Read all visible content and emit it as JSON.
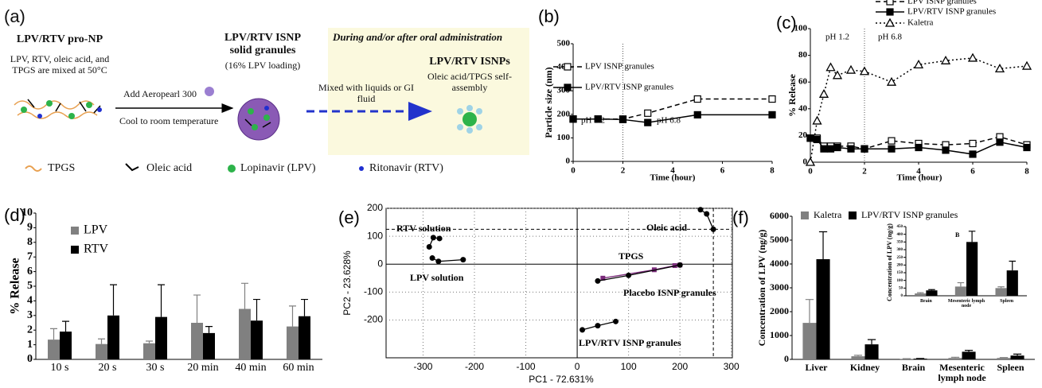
{
  "schematic": {
    "panel": "(a)",
    "step1_title": "LPV/RTV pro-NP",
    "step1_text": "LPV, RTV, oleic acid, and TPGS are mixed at 50°C",
    "arrow1_top": "Add Aeropearl 300",
    "arrow1_bottom": "Cool to room temperature",
    "step2_title": "LPV/RTV ISNP solid granules",
    "step2_note": "(16% LPV loading)",
    "box_title": "During and/or after oral administration",
    "arrow2_text": "Mixed with liquids or GI fluid",
    "step3_title": "LPV/RTV ISNPs",
    "step3_text": "Oleic acid/TPGS self-assembly",
    "legend": [
      "TPGS",
      "Oleic acid",
      "Lopinavir (LPV)",
      "Ritonavir (RTV)"
    ]
  },
  "chart_data": [
    {
      "panel": "(b)",
      "type": "line",
      "xlabel": "Time (hour)",
      "ylabel": "Particle size (nm)",
      "x": [
        0,
        1,
        2,
        3,
        5,
        8
      ],
      "xlim": [
        0,
        8
      ],
      "xticks": [
        0,
        2,
        4,
        6,
        8
      ],
      "ylim": [
        0,
        500
      ],
      "yticks": [
        0,
        100,
        200,
        300,
        400,
        500
      ],
      "divider": 2,
      "annotations": [
        "pH 1.2",
        "pH 6.8"
      ],
      "legend": "upper left",
      "series": [
        {
          "name": "LPV ISNP granules",
          "color": "#000000",
          "style": "dashed",
          "marker": "open",
          "values": [
            180,
            180,
            180,
            205,
            265,
            265
          ]
        },
        {
          "name": "LPV/RTV ISNP granules",
          "color": "#000000",
          "style": "solid",
          "marker": "filled",
          "values": [
            180,
            180,
            178,
            165,
            198,
            198
          ]
        }
      ]
    },
    {
      "panel": "(c)",
      "type": "line",
      "xlabel": "Time (hour)",
      "ylabel": "% Release",
      "x": [
        0,
        0.25,
        0.5,
        0.75,
        1,
        1.5,
        2,
        3,
        4,
        5,
        6,
        7,
        8
      ],
      "xlim": [
        0,
        8
      ],
      "xticks": [
        0,
        2,
        4,
        6,
        8
      ],
      "ylim": [
        0,
        100
      ],
      "yticks": [
        0,
        20,
        40,
        60,
        80,
        100
      ],
      "divider": 2,
      "annotations": [
        "pH 1.2",
        "pH 6.8"
      ],
      "legend": "above",
      "series": [
        {
          "name": "LPV ISNP granules",
          "color": "#000000",
          "style": "dashed",
          "marker": "open",
          "values": [
            18,
            18,
            12,
            12,
            12,
            12,
            10,
            16,
            14,
            13,
            14,
            19,
            13
          ]
        },
        {
          "name": "LPV/RTV ISNP granules",
          "color": "#000000",
          "style": "solid",
          "marker": "filled",
          "values": [
            18,
            17,
            10,
            10,
            11,
            10,
            10,
            10,
            11,
            9,
            6,
            15,
            11
          ]
        },
        {
          "name": "Kaletra",
          "color": "#000000",
          "style": "dotted",
          "marker": "triangle",
          "values": [
            0,
            31,
            51,
            71,
            65,
            69,
            68,
            60,
            73,
            76,
            78,
            70,
            72
          ]
        }
      ]
    },
    {
      "panel": "(d)",
      "type": "bar",
      "ylabel": "% Release",
      "categories": [
        "10 s",
        "20 s",
        "30 s",
        "20 min",
        "40 min",
        "60 min"
      ],
      "ylim": [
        0,
        10
      ],
      "yticks": [
        0,
        1,
        2,
        3,
        4,
        5,
        6,
        7,
        8,
        9,
        10
      ],
      "legend": "upper left",
      "series": [
        {
          "name": "LPV",
          "color": "#808080",
          "values": [
            1.35,
            1.05,
            1.1,
            2.5,
            3.45,
            2.25
          ],
          "errors": [
            0.75,
            0.35,
            0.15,
            1.9,
            1.75,
            1.4
          ]
        },
        {
          "name": "RTV",
          "color": "#000000",
          "values": [
            1.9,
            3.0,
            2.9,
            1.8,
            2.65,
            2.95
          ],
          "errors": [
            0.7,
            2.1,
            2.2,
            0.45,
            1.45,
            1.15
          ]
        }
      ]
    },
    {
      "panel": "(e)",
      "type": "scatter",
      "xlabel": "PC1 - 72.631%",
      "ylabel": "PC2 - 23.628%",
      "xlim": [
        -372,
        302
      ],
      "xticks": [
        -300,
        -200,
        -100,
        0,
        100,
        200,
        300
      ],
      "ylim": [
        -335,
        200
      ],
      "yticks": [
        -200,
        -100,
        0,
        100,
        200
      ],
      "grid": true,
      "refline_x": 265,
      "refline_y": 125,
      "series": [
        {
          "name": "RTV solution",
          "color": "#000000",
          "x": [
            -288,
            -280,
            -268
          ],
          "values": [
            62,
            95,
            92
          ]
        },
        {
          "name": "LPV solution",
          "color": "#000000",
          "x": [
            -282,
            -270,
            -222
          ],
          "values": [
            22,
            10,
            16
          ]
        },
        {
          "name": "Oleic acid",
          "color": "#000000",
          "x": [
            240,
            252,
            265
          ],
          "values": [
            195,
            180,
            125
          ]
        },
        {
          "name": "TPGS",
          "color": "#7a2a7a",
          "x": [
            50,
            150,
            190,
            200
          ],
          "values": [
            -50,
            -20,
            -5,
            -3
          ]
        },
        {
          "name": "Placebo ISNP  granules",
          "color": "#000000",
          "x": [
            40,
            100,
            200
          ],
          "values": [
            -60,
            -40,
            -3
          ]
        },
        {
          "name": "LPV/RTV ISNP  granules",
          "color": "#000000",
          "x": [
            10,
            40,
            75
          ],
          "values": [
            -235,
            -220,
            -205
          ]
        }
      ]
    },
    {
      "panel": "(f)",
      "type": "bar",
      "ylabel": "Concentration of LPV (ng/g)",
      "categories": [
        "Liver",
        "Kidney",
        "Brain",
        "Mesenteric lymph node",
        "Spleen"
      ],
      "ylim": [
        0,
        6000
      ],
      "yticks": [
        0,
        1000,
        2000,
        3000,
        4000,
        5000,
        6000
      ],
      "legend": "top",
      "series": [
        {
          "name": "Kaletra",
          "color": "#808080",
          "values": [
            1530,
            130,
            20,
            60,
            60
          ],
          "errors": [
            980,
            40,
            10,
            30,
            15
          ]
        },
        {
          "name": "LPV/RTV ISNP granules",
          "color": "#000000",
          "values": [
            4200,
            630,
            30,
            320,
            160
          ],
          "errors": [
            1150,
            200,
            10,
            60,
            60
          ]
        }
      ]
    },
    {
      "title": "B",
      "type": "bar",
      "ylabel": "Concentration of LPV (ng/g)",
      "categories": [
        "Brain",
        "Mesenteric lymph node",
        "Spleen"
      ],
      "ylim": [
        0,
        450
      ],
      "yticks": [
        0,
        50,
        100,
        150,
        200,
        250,
        300,
        350,
        400,
        450
      ],
      "series": [
        {
          "name": "Kaletra",
          "color": "#808080",
          "values": [
            15,
            60,
            50
          ],
          "errors": [
            5,
            25,
            8
          ]
        },
        {
          "name": "LPV/RTV ISNP granules",
          "color": "#000000",
          "values": [
            35,
            350,
            165
          ],
          "errors": [
            5,
            70,
            60
          ]
        }
      ]
    }
  ]
}
